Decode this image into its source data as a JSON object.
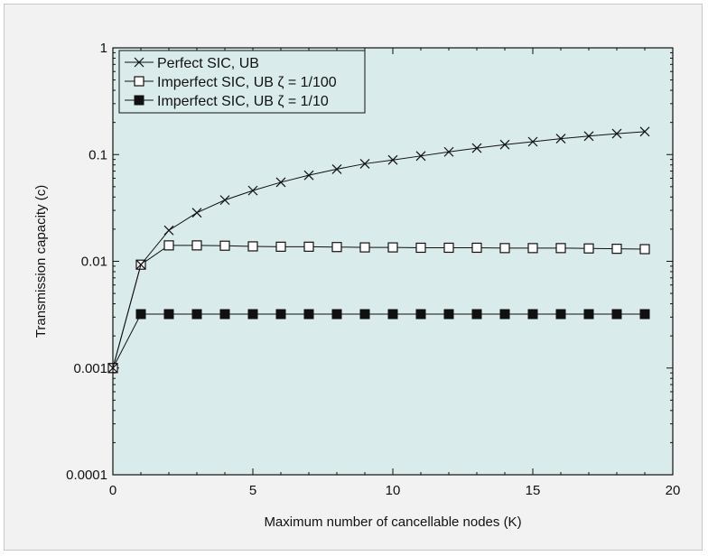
{
  "chart_data": {
    "type": "line",
    "xlabel": "Maximum number of cancellable nodes (K)",
    "ylabel": "Transmission capacity (c)",
    "xlim": [
      0,
      20
    ],
    "ylim": [
      0.0001,
      1
    ],
    "yscale": "log",
    "grid": false,
    "legend_position": "top-left",
    "x_ticks": [
      0,
      5,
      10,
      15,
      20
    ],
    "x_tick_labels": [
      "0",
      "5",
      "10",
      "15",
      "20"
    ],
    "y_ticks": [
      0.0001,
      0.001,
      0.01,
      0.1,
      1
    ],
    "y_tick_labels": [
      "0.0001",
      "0.001",
      "0.01",
      "0.1",
      "1"
    ],
    "x": [
      0,
      1,
      2,
      3,
      4,
      5,
      6,
      7,
      8,
      9,
      10,
      11,
      12,
      13,
      14,
      15,
      16,
      17,
      18,
      19
    ],
    "series": [
      {
        "name": "Perfect SIC, UB",
        "marker": "x",
        "values": [
          0.001,
          0.0093,
          0.0195,
          0.0285,
          0.0375,
          0.046,
          0.055,
          0.064,
          0.073,
          0.082,
          0.089,
          0.097,
          0.106,
          0.115,
          0.124,
          0.132,
          0.141,
          0.149,
          0.157,
          0.164
        ]
      },
      {
        "name": "Imperfect SIC, UB ζ = 1/100",
        "marker": "open-square",
        "values": [
          0.001,
          0.0093,
          0.0141,
          0.0141,
          0.014,
          0.0138,
          0.0137,
          0.0137,
          0.0136,
          0.0135,
          0.0135,
          0.0134,
          0.0134,
          0.0134,
          0.0133,
          0.0133,
          0.0133,
          0.0132,
          0.0131,
          0.013
        ]
      },
      {
        "name": "Imperfect SIC, UB ζ = 1/10",
        "marker": "filled-square",
        "values": [
          0.001,
          0.0032,
          0.0032,
          0.0032,
          0.0032,
          0.0032,
          0.0032,
          0.0032,
          0.0032,
          0.0032,
          0.0032,
          0.0032,
          0.0032,
          0.0032,
          0.0032,
          0.0032,
          0.0032,
          0.0032,
          0.0032,
          0.0032
        ]
      }
    ],
    "colors": {
      "plot_background": "#d9ebeb",
      "line": "#111111"
    }
  }
}
